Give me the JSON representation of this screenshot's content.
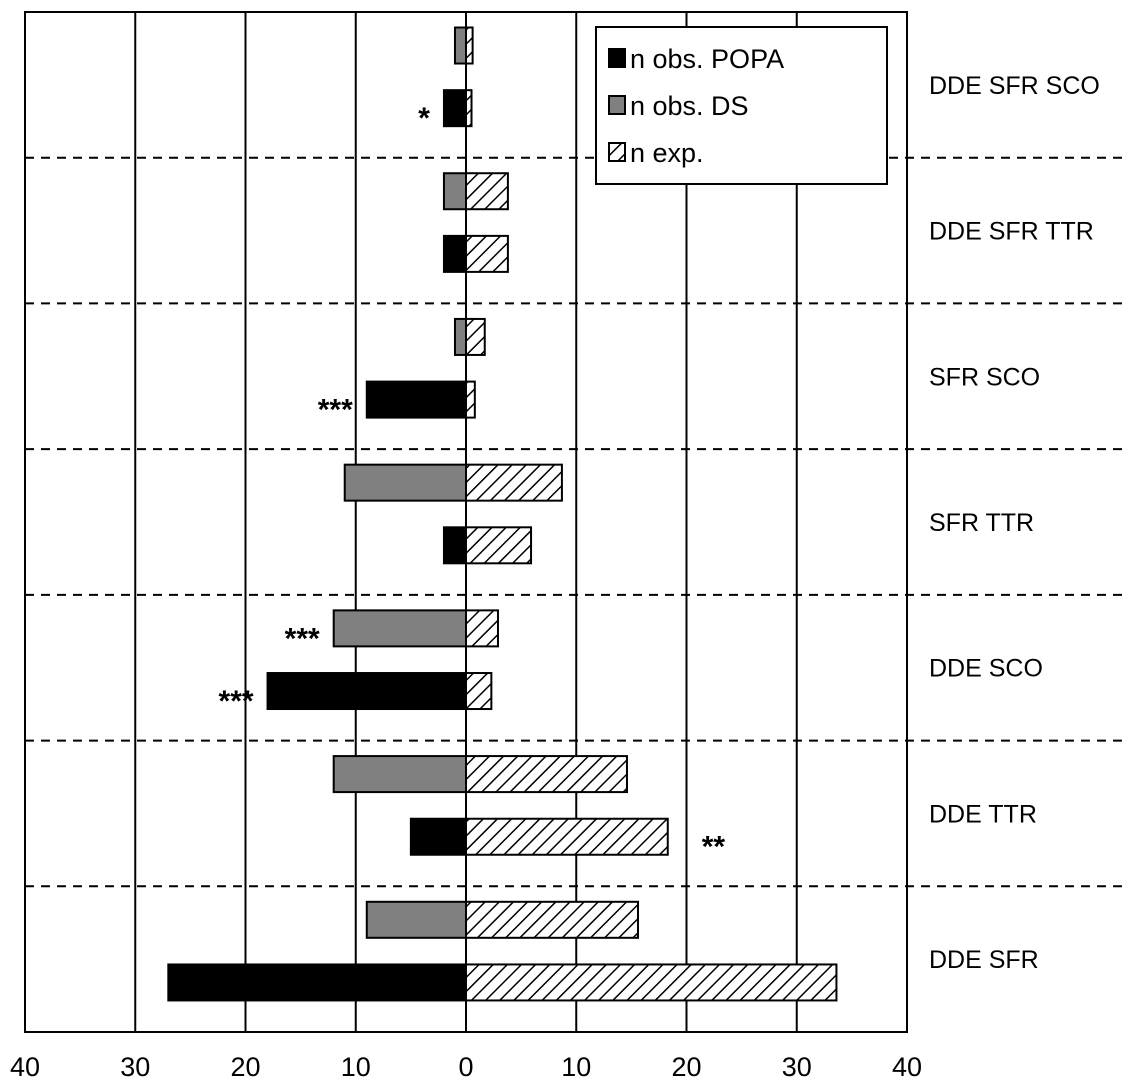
{
  "chart_data": {
    "type": "bar",
    "orientation": "horizontal",
    "categories": [
      "DDE SFR SCO",
      "DDE SFR TTR",
      "SFR SCO",
      "SFR TTR",
      "DDE SCO",
      "DDE TTR",
      "DDE SFR"
    ],
    "series": [
      {
        "name": "n obs. POPA",
        "color": "#000000",
        "pattern": "solid",
        "values": [
          2,
          2,
          9,
          2,
          18,
          5,
          27
        ],
        "significance": [
          "*",
          "",
          "***",
          "",
          "***",
          "",
          ""
        ]
      },
      {
        "name": "n obs. DS",
        "color": "#808080",
        "pattern": "solid",
        "values": [
          1,
          2,
          1,
          11,
          12,
          12,
          9
        ],
        "significance": [
          "",
          "",
          "",
          "",
          "***",
          "",
          ""
        ]
      },
      {
        "name": "n exp.",
        "color": "#ffffff",
        "pattern": "hatched",
        "values": [
          0.6,
          3.8,
          1.7,
          8.7,
          2.9,
          14.6,
          15.6
        ],
        "alt_values": [
          0.5,
          3.8,
          0.8,
          5.9,
          2.3,
          18.3,
          33.6
        ],
        "significance": [
          "",
          "",
          "",
          "",
          "",
          "",
          ""
        ],
        "alt_significance": [
          "",
          "",
          "",
          "",
          "",
          "**",
          ""
        ]
      }
    ],
    "x_ticks": [
      "40",
      "30",
      "20",
      "10",
      "0",
      "10",
      "20",
      "30",
      "40"
    ],
    "xlim": [
      -40,
      40
    ],
    "title": "",
    "xlabel": "",
    "ylabel": "",
    "grid": "vertical",
    "legend_position": "top-right"
  }
}
